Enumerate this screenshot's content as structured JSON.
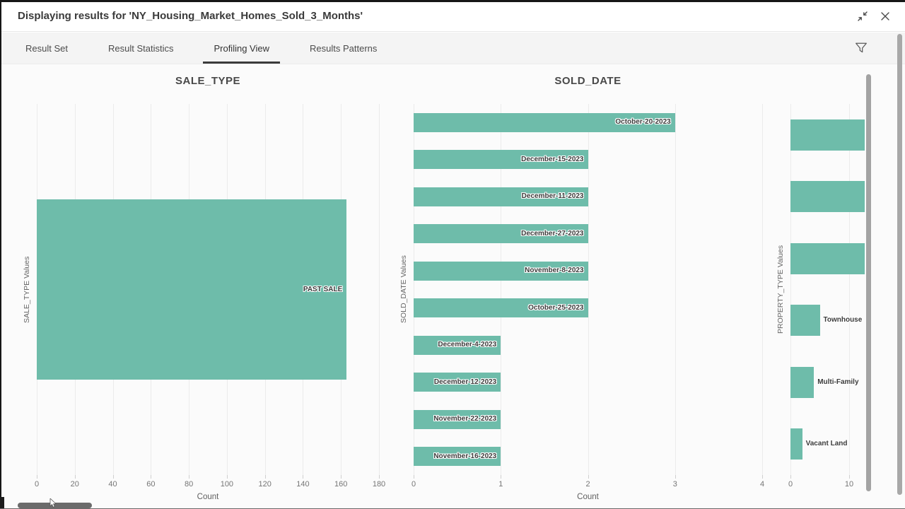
{
  "header": {
    "title": "Displaying results for 'NY_Housing_Market_Homes_Sold_3_Months'"
  },
  "tabs": {
    "items": [
      {
        "label": "Result Set",
        "active": false
      },
      {
        "label": "Result Statistics",
        "active": false
      },
      {
        "label": "Profiling View",
        "active": true
      },
      {
        "label": "Results Patterns",
        "active": false
      }
    ]
  },
  "icons": {
    "collapse": "collapse-diagonal-arrows",
    "close": "close-x",
    "filter": "funnel"
  },
  "colors": {
    "bar": "#6ebcaa",
    "active_tab_underline": "#3c3c3c",
    "tabbar_bg": "#f4f4f4"
  },
  "chart_data": [
    {
      "type": "bar",
      "orientation": "horizontal",
      "title": "SALE_TYPE",
      "xlabel": "Count",
      "ylabel": "SALE_TYPE Values",
      "categories": [
        "PAST SALE"
      ],
      "values": [
        163
      ],
      "clipped": [
        false
      ],
      "xticks": [
        0,
        20,
        40,
        60,
        80,
        100,
        120,
        140,
        160,
        180
      ],
      "xlim": [
        0,
        190
      ],
      "grid": true,
      "label_placement": "inside-end"
    },
    {
      "type": "bar",
      "orientation": "horizontal",
      "title": "SOLD_DATE",
      "xlabel": "Count",
      "ylabel": "SOLD_DATE Values",
      "categories": [
        "October-20-2023",
        "December-15-2023",
        "December-11-2023",
        "December-27-2023",
        "November-8-2023",
        "October-25-2023",
        "December-4-2023",
        "December-12-2023",
        "November-22-2023",
        "November-16-2023"
      ],
      "values": [
        3,
        2,
        2,
        2,
        2,
        2,
        1,
        1,
        1,
        1
      ],
      "clipped": [
        false,
        false,
        false,
        false,
        false,
        false,
        false,
        false,
        false,
        false
      ],
      "xticks": [
        0,
        1,
        2,
        3,
        4
      ],
      "xlim": [
        0,
        4.15
      ],
      "grid": true,
      "label_placement": "inside-end"
    },
    {
      "type": "bar",
      "orientation": "horizontal",
      "title": "",
      "xlabel": "",
      "ylabel": "PROPERTY_TYPE Values",
      "categories": [
        null,
        null,
        null,
        "Townhouse",
        "Multi-Family",
        "Vacant Land"
      ],
      "values": [
        null,
        null,
        null,
        5,
        4,
        2
      ],
      "clipped": [
        true,
        true,
        true,
        false,
        false,
        false
      ],
      "xticks": [
        0,
        10
      ],
      "xlim": [
        0,
        10
      ],
      "grid": true,
      "label_placement": "outside-end"
    }
  ]
}
